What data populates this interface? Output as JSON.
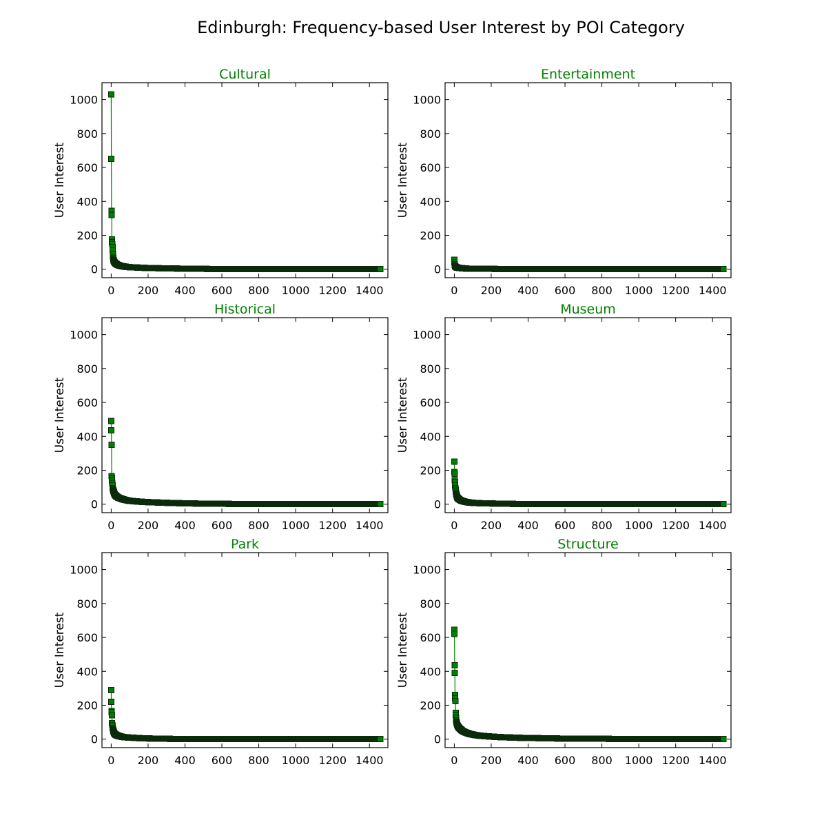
{
  "figure": {
    "title": "Edinburgh: Frequency-based User Interest by POI Category",
    "colors": {
      "marker": "#008000",
      "marker_edge": "#0a2a0a",
      "line": "#008000",
      "panel_title": "#008000",
      "axes": "#000000"
    }
  },
  "chart_data": [
    {
      "type": "line",
      "title": "Cultural",
      "ylabel": "User Interest",
      "xlabel": "",
      "xlim": [
        -50,
        1500
      ],
      "ylim": [
        -50,
        1100
      ],
      "xticks": [
        0,
        200,
        400,
        600,
        800,
        1000,
        1200,
        1400
      ],
      "yticks": [
        0,
        200,
        400,
        600,
        800,
        1000
      ],
      "marker": "square",
      "grid": false,
      "n_points": 1460,
      "series": [
        {
          "x": [
            0,
            1,
            2,
            3,
            4,
            5,
            6,
            7,
            8,
            9,
            10,
            12,
            14,
            16,
            18,
            20,
            25,
            30,
            35,
            40,
            45,
            50,
            60,
            70,
            80,
            90,
            100,
            120,
            140,
            160,
            180,
            200,
            250,
            300,
            350,
            400,
            450,
            500,
            600,
            700,
            800,
            900,
            1000,
            1100,
            1200,
            1300,
            1400,
            1459
          ],
          "y": [
            1030,
            650,
            345,
            320,
            175,
            160,
            150,
            130,
            112,
            90,
            72,
            58,
            50,
            45,
            42,
            38,
            33,
            29,
            26,
            24,
            22,
            20,
            18,
            16,
            14,
            13,
            12,
            11,
            10,
            9,
            8,
            7,
            6,
            5,
            4,
            3,
            2,
            2,
            1,
            1,
            1,
            1,
            0,
            0,
            0,
            0,
            0,
            0
          ]
        }
      ]
    },
    {
      "type": "line",
      "title": "Entertainment",
      "ylabel": "User Interest",
      "xlabel": "",
      "xlim": [
        -50,
        1500
      ],
      "ylim": [
        -50,
        1100
      ],
      "xticks": [
        0,
        200,
        400,
        600,
        800,
        1000,
        1200,
        1400
      ],
      "yticks": [
        0,
        200,
        400,
        600,
        800,
        1000
      ],
      "marker": "square",
      "grid": false,
      "n_points": 1460,
      "series": [
        {
          "x": [
            0,
            1,
            2,
            3,
            4,
            5,
            6,
            8,
            10,
            12,
            15,
            20,
            25,
            30,
            40,
            50,
            60,
            80,
            100,
            150,
            200,
            300,
            400,
            600,
            800,
            1000,
            1200,
            1400,
            1459
          ],
          "y": [
            55,
            40,
            30,
            25,
            20,
            18,
            16,
            14,
            12,
            11,
            10,
            9,
            8,
            7,
            6,
            5,
            4,
            3,
            3,
            2,
            2,
            1,
            1,
            1,
            0,
            0,
            0,
            0,
            0
          ]
        }
      ]
    },
    {
      "type": "line",
      "title": "Historical",
      "ylabel": "User Interest",
      "xlabel": "",
      "xlim": [
        -50,
        1500
      ],
      "ylim": [
        -50,
        1100
      ],
      "xticks": [
        0,
        200,
        400,
        600,
        800,
        1000,
        1200,
        1400
      ],
      "yticks": [
        0,
        200,
        400,
        600,
        800,
        1000
      ],
      "marker": "square",
      "grid": false,
      "n_points": 1460,
      "series": [
        {
          "x": [
            0,
            1,
            2,
            3,
            4,
            5,
            6,
            7,
            8,
            10,
            12,
            14,
            16,
            18,
            20,
            25,
            30,
            35,
            40,
            50,
            60,
            70,
            80,
            100,
            120,
            150,
            200,
            250,
            300,
            400,
            500,
            600,
            800,
            1000,
            1200,
            1400,
            1459
          ],
          "y": [
            490,
            435,
            350,
            165,
            155,
            140,
            125,
            110,
            95,
            85,
            78,
            72,
            66,
            60,
            55,
            50,
            45,
            42,
            38,
            34,
            30,
            27,
            24,
            20,
            18,
            15,
            12,
            10,
            8,
            5,
            3,
            2,
            1,
            1,
            0,
            0,
            0
          ]
        }
      ]
    },
    {
      "type": "line",
      "title": "Museum",
      "ylabel": "User Interest",
      "xlabel": "",
      "xlim": [
        -50,
        1500
      ],
      "ylim": [
        -50,
        1100
      ],
      "xticks": [
        0,
        200,
        400,
        600,
        800,
        1000,
        1200,
        1400
      ],
      "yticks": [
        0,
        200,
        400,
        600,
        800,
        1000
      ],
      "marker": "square",
      "grid": false,
      "n_points": 1460,
      "series": [
        {
          "x": [
            0,
            1,
            2,
            3,
            4,
            5,
            6,
            7,
            8,
            10,
            12,
            14,
            16,
            18,
            20,
            25,
            30,
            35,
            40,
            50,
            60,
            70,
            80,
            100,
            120,
            150,
            200,
            300,
            400,
            600,
            800,
            1000,
            1200,
            1400,
            1459
          ],
          "y": [
            250,
            190,
            180,
            140,
            130,
            110,
            95,
            85,
            75,
            62,
            55,
            48,
            42,
            38,
            35,
            30,
            26,
            23,
            20,
            17,
            14,
            12,
            10,
            8,
            7,
            5,
            4,
            2,
            1,
            1,
            0,
            0,
            0,
            0,
            0
          ]
        }
      ]
    },
    {
      "type": "line",
      "title": "Park",
      "ylabel": "User Interest",
      "xlabel": "",
      "xlim": [
        -50,
        1500
      ],
      "ylim": [
        -50,
        1100
      ],
      "xticks": [
        0,
        200,
        400,
        600,
        800,
        1000,
        1200,
        1400
      ],
      "yticks": [
        0,
        200,
        400,
        600,
        800,
        1000
      ],
      "marker": "square",
      "grid": false,
      "n_points": 1460,
      "series": [
        {
          "x": [
            0,
            1,
            2,
            3,
            4,
            5,
            6,
            7,
            8,
            10,
            12,
            14,
            16,
            18,
            20,
            25,
            30,
            35,
            40,
            50,
            60,
            70,
            80,
            100,
            120,
            150,
            200,
            250,
            300,
            400,
            600,
            800,
            1000,
            1200,
            1400,
            1459
          ],
          "y": [
            290,
            220,
            165,
            160,
            140,
            95,
            85,
            75,
            65,
            55,
            48,
            42,
            38,
            34,
            30,
            26,
            23,
            21,
            19,
            16,
            14,
            12,
            11,
            9,
            8,
            6,
            4,
            3,
            2,
            1,
            1,
            0,
            0,
            0,
            0,
            0
          ]
        }
      ]
    },
    {
      "type": "line",
      "title": "Structure",
      "ylabel": "User Interest",
      "xlabel": "",
      "xlim": [
        -50,
        1500
      ],
      "ylim": [
        -50,
        1100
      ],
      "xticks": [
        0,
        200,
        400,
        600,
        800,
        1000,
        1200,
        1400
      ],
      "yticks": [
        0,
        200,
        400,
        600,
        800,
        1000
      ],
      "marker": "square",
      "grid": false,
      "n_points": 1460,
      "series": [
        {
          "x": [
            0,
            1,
            2,
            3,
            4,
            5,
            6,
            7,
            8,
            9,
            10,
            12,
            14,
            16,
            18,
            20,
            25,
            30,
            35,
            40,
            50,
            60,
            70,
            80,
            100,
            120,
            150,
            200,
            250,
            300,
            350,
            400,
            450,
            500,
            550,
            600,
            800,
            1000,
            1200,
            1400,
            1459
          ],
          "y": [
            645,
            620,
            435,
            390,
            260,
            240,
            225,
            155,
            140,
            125,
            110,
            100,
            92,
            86,
            80,
            75,
            68,
            62,
            57,
            52,
            45,
            40,
            36,
            32,
            27,
            23,
            19,
            15,
            12,
            10,
            8,
            7,
            6,
            5,
            4,
            3,
            2,
            1,
            0,
            0,
            0
          ]
        }
      ]
    }
  ]
}
